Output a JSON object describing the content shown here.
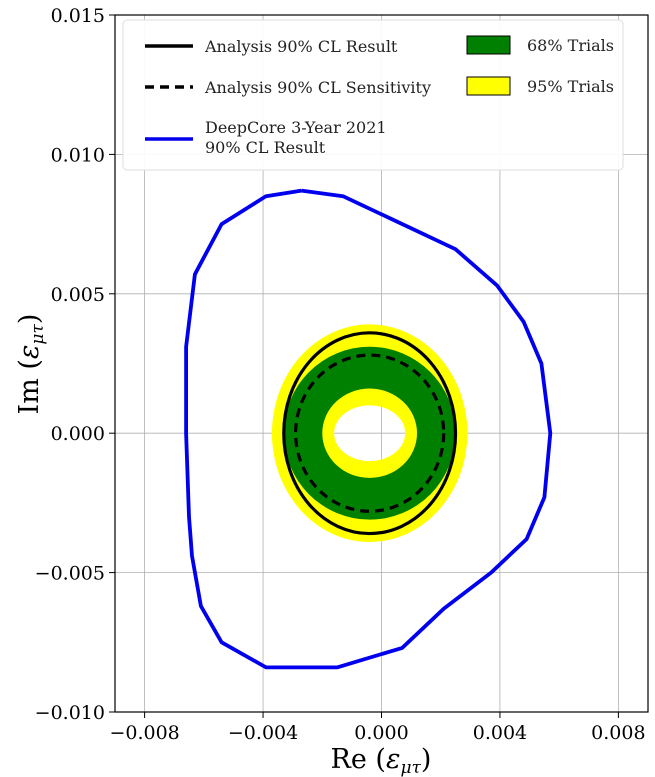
{
  "chart_data": {
    "type": "line",
    "xlabel": "Re (εμτ)",
    "ylabel": "Im (εμτ)",
    "xlabel_parts": {
      "main": "Re (",
      "sym": "ε",
      "sub": "μτ",
      "close": ")"
    },
    "ylabel_parts": {
      "main": "Im (",
      "sym": "ε",
      "sub": "μτ",
      "close": ")"
    },
    "xlim": [
      -0.009,
      0.009
    ],
    "ylim": [
      -0.01,
      0.015
    ],
    "grid": true,
    "legend_position": "top",
    "x_ticks": [
      -0.008,
      -0.004,
      0.0,
      0.004,
      0.008
    ],
    "x_tick_labels": [
      "−0.008",
      "−0.004",
      "0.000",
      "0.004",
      "0.008"
    ],
    "y_ticks": [
      -0.01,
      -0.005,
      0.0,
      0.005,
      0.01,
      0.015
    ],
    "y_tick_labels": [
      "−0.010",
      "−0.005",
      "0.000",
      "0.005",
      "0.010",
      "0.015"
    ],
    "series": [
      {
        "name": "DeepCore 3-Year 2021 90% CL Result",
        "name_lines": [
          "DeepCore 3-Year 2021",
          "90% CL Result"
        ],
        "style": "solid",
        "color": "#0000ee",
        "points": [
          [
            -0.0027,
            0.0087
          ],
          [
            -0.0013,
            0.0085
          ],
          [
            0.0003,
            0.0077
          ],
          [
            0.0025,
            0.0066
          ],
          [
            0.0039,
            0.0053
          ],
          [
            0.0048,
            0.004
          ],
          [
            0.0054,
            0.0025
          ],
          [
            0.0057,
            0.0
          ],
          [
            0.0055,
            -0.0023
          ],
          [
            0.0049,
            -0.0038
          ],
          [
            0.0037,
            -0.005
          ],
          [
            0.0021,
            -0.0063
          ],
          [
            0.0007,
            -0.0077
          ],
          [
            -0.0015,
            -0.0084
          ],
          [
            -0.0039,
            -0.0084
          ],
          [
            -0.0054,
            -0.0075
          ],
          [
            -0.0061,
            -0.0062
          ],
          [
            -0.0064,
            -0.0044
          ],
          [
            -0.0065,
            -0.003
          ],
          [
            -0.0066,
            0.0
          ],
          [
            -0.0066,
            0.0031
          ],
          [
            -0.0063,
            0.0057
          ],
          [
            -0.0054,
            0.0075
          ],
          [
            -0.0039,
            0.0085
          ],
          [
            -0.0027,
            0.0087
          ]
        ]
      },
      {
        "name": "Analysis 90% CL Result",
        "style": "solid",
        "color": "#000000",
        "ellipse": {
          "center": [
            -0.0004,
            0.0
          ],
          "radius": [
            0.0029,
            0.0036
          ]
        }
      },
      {
        "name": "Analysis 90% CL Sensitivity",
        "style": "dashed",
        "color": "#000000",
        "ellipse": {
          "center": [
            -0.0004,
            0.0
          ],
          "radius": [
            0.0025,
            0.0028
          ]
        }
      }
    ],
    "bands": [
      {
        "name": "68% Trials",
        "color": "#008000",
        "center": [
          -0.0004,
          0.0
        ],
        "outer_radius": [
          0.0029,
          0.0031
        ],
        "inner_radius": [
          0.0016,
          0.0016
        ]
      },
      {
        "name": "95% Trials",
        "color": "#ffff00",
        "center": [
          -0.0004,
          0.0
        ],
        "outer_radius": [
          0.0033,
          0.0039
        ],
        "inner_radius": [
          0.0012,
          0.001
        ]
      }
    ]
  }
}
